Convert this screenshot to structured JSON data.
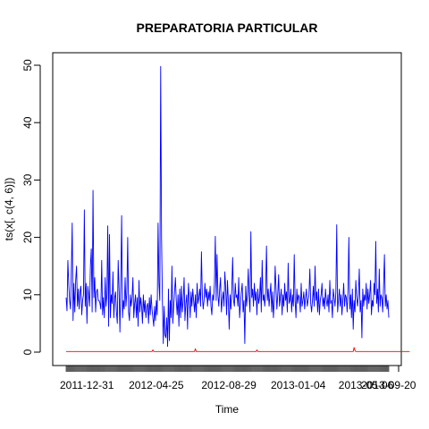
{
  "chart_data": {
    "type": "line",
    "title": "PREPARATORIA PARTICULAR",
    "xlabel": "Time",
    "ylabel": "ts(x[, c(4, 6)])",
    "ylim": [
      0,
      52
    ],
    "yticks": [
      0,
      10,
      20,
      30,
      40,
      50
    ],
    "y_tick_labels": [
      "0",
      "10",
      "20",
      "30",
      "40",
      "50"
    ],
    "x_tick_labels": [
      "2011-12-31",
      "2012-04-25",
      "2012-08-29",
      "2013-01-04",
      "2013-05-06",
      "2013-09-20"
    ],
    "x_tick_label_overlaps": [
      "12-31",
      "04-25",
      "08-29",
      "01-04",
      "05-06",
      "09-20"
    ],
    "grid": false,
    "legend": "none",
    "series": [
      {
        "color": "#0000ff",
        "values": [
          9.5,
          7.2,
          16.0,
          12.0,
          9.0,
          7.5,
          14.0,
          22.5,
          5.5,
          12.0,
          7.0,
          12.5,
          15.0,
          8.0,
          11.0,
          7.5,
          10.5,
          11.5,
          6.5,
          9.0,
          10.0,
          24.8,
          8.0,
          12.0,
          5.0,
          11.5,
          10.0,
          8.0,
          15.0,
          18.0,
          7.0,
          28.2,
          9.5,
          13.0,
          7.0,
          10.5,
          11.0,
          9.0,
          9.0,
          8.5,
          7.5,
          16.0,
          6.5,
          9.5,
          6.0,
          13.0,
          8.0,
          10.0,
          22.0,
          4.5,
          20.5,
          6.0,
          10.0,
          8.5,
          14.0,
          6.0,
          9.5,
          10.5,
          7.0,
          5.0,
          16.0,
          11.0,
          3.5,
          12.0,
          23.8,
          6.0,
          9.0,
          7.5,
          13.0,
          8.0,
          10.5,
          20.0,
          7.0,
          5.5,
          10.0,
          8.0,
          9.5,
          13.0,
          6.0,
          8.5,
          10.0,
          6.0,
          9.5,
          4.5,
          12.5,
          7.0,
          9.5,
          8.0,
          5.0,
          10.0,
          7.0,
          9.0,
          6.0,
          8.0,
          8.5,
          5.0,
          9.5,
          6.5,
          10.0,
          7.5,
          6.0,
          4.5,
          8.0,
          5.5,
          9.0,
          6.5,
          22.5,
          12.0,
          9.0,
          49.8,
          20.0,
          9.0,
          1.5,
          8.0,
          3.0,
          2.5,
          6.0,
          1.0,
          11.0,
          2.0,
          9.0,
          6.0,
          15.0,
          5.0,
          8.0,
          10.5,
          13.0,
          9.0,
          6.5,
          10.0,
          4.5,
          11.0,
          6.0,
          11.5,
          7.0,
          9.0,
          13.0,
          5.5,
          8.5,
          10.0,
          4.0,
          12.0,
          9.5,
          6.0,
          10.5,
          8.0,
          11.0,
          9.0,
          7.0,
          10.0,
          6.0,
          12.0,
          8.5,
          9.5,
          11.0,
          8.0,
          17.5,
          10.0,
          7.5,
          9.0,
          12.0,
          9.5,
          11.0,
          8.0,
          10.5,
          9.0,
          11.5,
          8.0,
          6.5,
          10.0,
          9.0,
          12.0,
          20.2,
          9.0,
          17.0,
          10.0,
          8.0,
          11.0,
          13.0,
          7.0,
          9.0,
          10.5,
          8.0,
          14.0,
          11.0,
          6.5,
          12.5,
          9.0,
          4.0,
          10.0,
          7.5,
          11.0,
          16.5,
          9.0,
          8.0,
          12.0,
          9.5,
          10.0,
          8.0,
          13.0,
          6.0,
          8.5,
          10.5,
          12.0,
          7.0,
          9.0,
          1.5,
          11.5,
          8.0,
          10.0,
          14.5,
          9.5,
          7.0,
          21.0,
          9.5,
          11.0,
          8.0,
          12.0,
          9.0,
          10.5,
          6.5,
          11.0,
          8.5,
          9.5,
          13.0,
          7.0,
          16.0,
          9.0,
          10.0,
          8.0,
          10.5,
          18.5,
          9.0,
          11.0,
          8.0,
          10.0,
          12.0,
          7.0,
          10.5,
          6.0,
          9.0,
          15.0,
          11.0,
          7.5,
          10.0,
          13.5,
          8.0,
          9.5,
          11.0,
          6.5,
          10.0,
          8.0,
          12.0,
          9.0,
          10.5,
          7.0,
          15.5,
          8.5,
          9.0,
          11.0,
          7.0,
          10.0,
          8.0,
          17.0,
          9.0,
          6.0,
          11.0,
          8.5,
          10.0,
          9.5,
          7.0,
          12.0,
          8.0,
          9.0,
          10.5,
          7.5,
          9.5,
          11.0,
          8.0,
          9.0,
          10.0,
          14.5,
          8.5,
          7.0,
          9.0,
          11.5,
          8.0,
          15.0,
          9.0,
          10.5,
          7.0,
          11.0,
          6.5,
          9.0,
          10.0,
          12.0,
          8.0,
          9.5,
          7.5,
          11.0,
          9.0,
          8.0,
          10.0,
          7.0,
          12.5,
          8.5,
          9.0,
          6.0,
          11.0,
          9.5,
          8.0,
          10.5,
          22.2,
          7.0,
          9.0,
          11.0,
          8.0,
          10.0,
          6.5,
          9.0,
          12.0,
          8.0,
          10.0,
          9.5,
          7.0,
          11.0,
          20.0,
          7.5,
          10.0,
          6.0,
          11.0,
          4.0,
          9.0,
          7.0,
          12.5,
          9.5,
          8.0,
          10.0,
          14.5,
          7.0,
          9.0,
          2.5,
          11.0,
          8.0,
          10.0,
          9.0,
          12.0,
          7.5,
          11.0,
          8.5,
          10.0,
          12.5,
          6.5,
          9.0,
          8.0,
          12.0,
          10.0,
          19.3,
          8.5,
          11.0,
          7.0,
          14.5,
          8.0,
          10.0,
          9.5,
          7.0,
          11.5,
          17.0,
          8.0,
          10.0,
          7.5,
          9.0,
          6.0
        ]
      },
      {
        "color": "#ff0000",
        "values": [
          0.1,
          0.1,
          0.1,
          0.1,
          0.1,
          0.1,
          0.1,
          0.1,
          0.1,
          0.1,
          0.1,
          0.1,
          0.1,
          0.1,
          0.1,
          0.1,
          0.1,
          0.1,
          0.1,
          0.1,
          0.1,
          0.1,
          0.1,
          0.1,
          0.1,
          0.1,
          0.1,
          0.1,
          0.1,
          0.1,
          0.1,
          0.1,
          0.1,
          0.1,
          0.1,
          0.1,
          0.1,
          0.1,
          0.1,
          0.1,
          0.1,
          0.1,
          0.1,
          0.1,
          0.1,
          0.1,
          0.1,
          0.1,
          0.1,
          0.1,
          0.1,
          0.1,
          0.1,
          0.1,
          0.1,
          0.1,
          0.1,
          0.1,
          0.1,
          0.1,
          0.1,
          0.1,
          0.1,
          0.1,
          0.1,
          0.1,
          0.1,
          0.1,
          0.1,
          0.1,
          0.1,
          0.1,
          0.1,
          0.1,
          0.1,
          0.1,
          0.1,
          0.1,
          0.1,
          0.1,
          0.1,
          0.1,
          0.1,
          0.1,
          0.1,
          0.1,
          0.1,
          0.1,
          0.1,
          0.1,
          0.1,
          0.1,
          0.1,
          0.1,
          0.1,
          0.1,
          0.1,
          0.1,
          0.1,
          0.1,
          0.4,
          0.1,
          0.1,
          0.1,
          0.1,
          0.1,
          0.1,
          0.1,
          0.1,
          0.1,
          0.1,
          0.1,
          0.1,
          0.1,
          0.1,
          0.1,
          0.1,
          0.1,
          0.1,
          0.1,
          0.1,
          0.1,
          0.1,
          0.1,
          0.1,
          0.1,
          0.1,
          0.1,
          0.1,
          0.1,
          0.1,
          0.1,
          0.1,
          0.1,
          0.1,
          0.1,
          0.1,
          0.1,
          0.1,
          0.1,
          0.1,
          0.1,
          0.1,
          0.1,
          0.1,
          0.1,
          0.1,
          0.1,
          0.1,
          0.6,
          0.1,
          0.1,
          0.1,
          0.1,
          0.1,
          0.1,
          0.1,
          0.1,
          0.1,
          0.1,
          0.1,
          0.1,
          0.1,
          0.1,
          0.1,
          0.1,
          0.1,
          0.1,
          0.1,
          0.1,
          0.1,
          0.1,
          0.1,
          0.1,
          0.1,
          0.1,
          0.1,
          0.1,
          0.1,
          0.1,
          0.1,
          0.1,
          0.1,
          0.1,
          0.1,
          0.1,
          0.1,
          0.1,
          0.1,
          0.1,
          0.1,
          0.1,
          0.1,
          0.1,
          0.1,
          0.1,
          0.1,
          0.1,
          0.1,
          0.1,
          0.1,
          0.1,
          0.1,
          0.1,
          0.1,
          0.1,
          0.1,
          0.1,
          0.1,
          0.1,
          0.1,
          0.1,
          0.1,
          0.1,
          0.1,
          0.1,
          0.1,
          0.1,
          0.1,
          0.1,
          0.4,
          0.1,
          0.1,
          0.1,
          0.1,
          0.1,
          0.1,
          0.1,
          0.1,
          0.1,
          0.1,
          0.1,
          0.1,
          0.1,
          0.1,
          0.1,
          0.1,
          0.1,
          0.1,
          0.1,
          0.1,
          0.1,
          0.1,
          0.1,
          0.1,
          0.1,
          0.1,
          0.1,
          0.1,
          0.1,
          0.1,
          0.1,
          0.1,
          0.1,
          0.1,
          0.1,
          0.1,
          0.1,
          0.1,
          0.1,
          0.1,
          0.1,
          0.1,
          0.1,
          0.1,
          0.1,
          0.1,
          0.1,
          0.1,
          0.1,
          0.1,
          0.1,
          0.1,
          0.1,
          0.1,
          0.1,
          0.1,
          0.1,
          0.1,
          0.1,
          0.1,
          0.1,
          0.1,
          0.1,
          0.1,
          0.1,
          0.1,
          0.1,
          0.1,
          0.1,
          0.1,
          0.1,
          0.1,
          0.1,
          0.1,
          0.1,
          0.1,
          0.1,
          0.1,
          0.1,
          0.1,
          0.1,
          0.1,
          0.1,
          0.1,
          0.1,
          0.1,
          0.1,
          0.1,
          0.1,
          0.1,
          0.1,
          0.1,
          0.1,
          0.1,
          0.1,
          0.1,
          0.1,
          0.1,
          0.1,
          0.1,
          0.1,
          0.1,
          0.1,
          0.1,
          0.1,
          0.1,
          0.1,
          0.1,
          0.1,
          0.1,
          0.1,
          0.8,
          0.3,
          0.1,
          0.1,
          0.1,
          0.1,
          0.1,
          0.1,
          0.1,
          0.1,
          0.1,
          0.1,
          0.1,
          0.1,
          0.1,
          0.1,
          0.1,
          0.1,
          0.1,
          0.1,
          0.1,
          0.1,
          0.1,
          0.1,
          0.1,
          0.1,
          0.1,
          0.1,
          0.1,
          0.1,
          0.1,
          0.1,
          0.1,
          0.1,
          0.1,
          0.1,
          0.1,
          0.1,
          0.1,
          0.1,
          0.1,
          0.1,
          0.1,
          0.1,
          0.1,
          0.1,
          0.1,
          0.1,
          0.1,
          0.1,
          0.1,
          0.1,
          0.1,
          0.1,
          0.1,
          0.1,
          0.1,
          0.1,
          0.1,
          0.1,
          0.1,
          0.1,
          0.1,
          0.1,
          0.1
        ]
      }
    ]
  }
}
